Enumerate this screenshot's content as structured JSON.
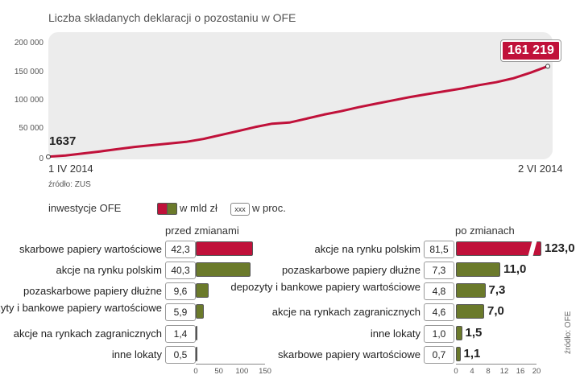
{
  "title": "Liczba składanych deklaracji o pozostaniu w OFE",
  "source_line": "źródło: ZUS",
  "legend": {
    "label": "inwestycje OFE",
    "mld": "w mld zł",
    "proc_box": "xxx",
    "proc": "w proc."
  },
  "colors": {
    "red": "#c0113a",
    "olive": "#6b7a2b",
    "panel": "#ececec"
  },
  "side_source": "źródło: OFE",
  "chart_data": [
    {
      "type": "line",
      "title": "Liczba składanych deklaracji o pozostaniu w OFE",
      "xlabel": "",
      "ylabel": "",
      "x_start_label": "1 IV 2014",
      "x_end_label": "2 VI 2014",
      "first_value_label": "1637",
      "last_value_label": "161 219",
      "yticks": [
        "0",
        "50 000",
        "100 000",
        "150 000",
        "200 000"
      ],
      "ylim": [
        0,
        200000
      ],
      "series": [
        {
          "values": [
            1637,
            4000,
            7500,
            11000,
            15000,
            19000,
            22000,
            25000,
            28000,
            33000,
            40000,
            47000,
            54000,
            60000,
            62000,
            69000,
            76000,
            82000,
            89000,
            95000,
            101000,
            107000,
            112000,
            117000,
            122000,
            128000,
            133000,
            140000,
            150000,
            161219
          ]
        }
      ],
      "grid": false
    },
    {
      "type": "bar",
      "title": "przed zmianami",
      "categories": [
        "skarbowe papiery wartościowe",
        "akcje na rynku polskim",
        "pozaskarbowe papiery dłużne",
        "depozyty i bankowe papiery wartościowe",
        "akcje na rynkach zagranicznych",
        "inne lokaty"
      ],
      "percent_labels": [
        "42,3",
        "40,3",
        "9,6",
        "5,9",
        "1,4",
        "0,5"
      ],
      "values": [
        124,
        118,
        28,
        17,
        4,
        1.5
      ],
      "xticks": [
        "0",
        "50",
        "100",
        "150"
      ],
      "xlim": [
        0,
        150
      ]
    },
    {
      "type": "bar",
      "title": "po zmianach",
      "categories": [
        "akcje na rynku polskim",
        "pozaskarbowe papiery dłużne",
        "depozyty i bankowe papiery wartościowe",
        "akcje na rynkach zagranicznych",
        "inne lokaty",
        "skarbowe papiery wartościowe"
      ],
      "percent_labels": [
        "81,5",
        "7,3",
        "4,8",
        "4,6",
        "1,0",
        "0,7"
      ],
      "value_labels": [
        "123,0",
        "11,0",
        "7,3",
        "7,0",
        "1,5",
        "1,1"
      ],
      "values": [
        123.0,
        11.0,
        7.3,
        7.0,
        1.5,
        1.1
      ],
      "xticks": [
        "0",
        "4",
        "8",
        "12",
        "16",
        "20"
      ],
      "xlim": [
        0,
        20
      ],
      "axis_break": true
    }
  ]
}
